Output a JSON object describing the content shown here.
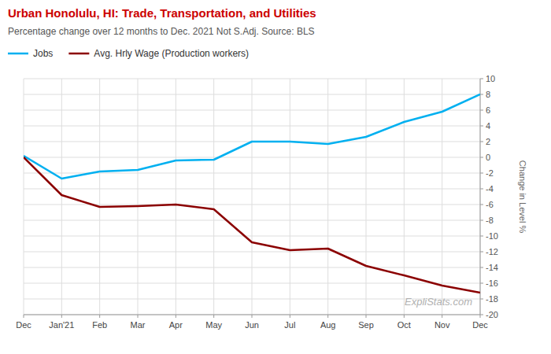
{
  "chart_data": {
    "type": "line",
    "title": "Urban Honolulu, HI:  Trade, Transportation, and Utilities",
    "subtitle": "Percentage change over 12 months to Dec. 2021 Not S.Adj. Source: BLS",
    "y_label": "Change in Level %",
    "categories": [
      "Dec",
      "Jan'21",
      "Feb",
      "Mar",
      "Apr",
      "May",
      "Jun",
      "Jul",
      "Aug",
      "Sep",
      "Oct",
      "Nov",
      "Dec"
    ],
    "series": [
      {
        "name": "Jobs",
        "color": "#00b0f0",
        "values": [
          0.2,
          -2.7,
          -1.8,
          -1.6,
          -0.4,
          -0.3,
          2.0,
          2.0,
          1.7,
          2.6,
          4.5,
          5.8,
          8.0
        ]
      },
      {
        "name": "Avg. Hrly Wage (Production workers)",
        "color": "#8b0000",
        "values": [
          0.0,
          -4.8,
          -6.3,
          -6.2,
          -6.0,
          -6.6,
          -10.8,
          -11.8,
          -11.6,
          -13.8,
          -15.0,
          -16.3,
          -17.2
        ]
      }
    ],
    "ylim": [
      -20,
      10
    ],
    "yticks": [
      -20,
      -18,
      -16,
      -14,
      -12,
      -10,
      -8,
      -6,
      -4,
      -2,
      0,
      2,
      4,
      6,
      8,
      10
    ],
    "grid": true,
    "legend": "top",
    "annotations": [
      "ExpliStats.com"
    ]
  }
}
